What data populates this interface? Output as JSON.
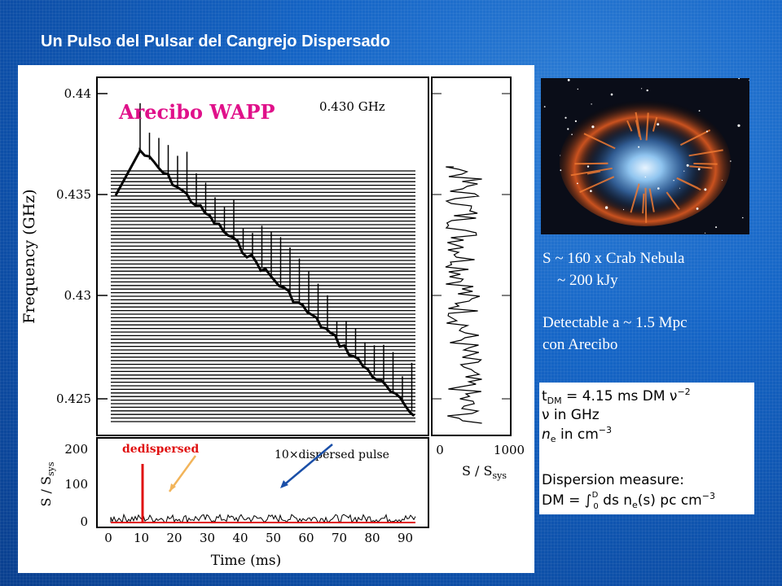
{
  "slide": {
    "title": "Un Pulso del Pulsar del Cangrejo Dispersado"
  },
  "plot": {
    "observatory_label": "Arecibo WAPP",
    "frequency_label": "0.430 GHz",
    "y_axis_label": "Frequency (GHz)",
    "y_ticks": [
      "0.44",
      "0.435",
      "0.43",
      "0.425"
    ],
    "right_x_label": "S / S",
    "right_x_sub": "sys",
    "right_x_ticks": [
      "0",
      "1000"
    ],
    "bottom_y_label": "S / S",
    "bottom_y_sub": "sys",
    "bottom_y_ticks": [
      "200",
      "100",
      "0"
    ],
    "bottom_x_ticks": [
      "0",
      "10",
      "20",
      "30",
      "40",
      "50",
      "60",
      "70",
      "80",
      "90"
    ],
    "x_axis_label": "Time (ms)",
    "dedispersed_label": "dedispersed",
    "dispersed_label": "10×dispersed pulse"
  },
  "info": {
    "line1": "S ~ 160 x Crab Nebula",
    "line2": "~ 200 kJy",
    "line3": "Detectable a ~ 1.5 Mpc",
    "line4": "con Arecibo"
  },
  "formula": {
    "tdm_pre": "t",
    "tdm_sub": "DM",
    "tdm_rest": " = 4.15 ms DM ν",
    "tdm_sup": "−2",
    "nu_line": "ν in GHz",
    "ne_pre": "n",
    "ne_sub": "e",
    "ne_rest": " in cm",
    "ne_sup": "−3",
    "dm_title": "Dispersion measure:",
    "dm_pre": "DM = ∫",
    "dm_upper": "D",
    "dm_lower": "0",
    "dm_mid": " ds n",
    "dm_sub": "e",
    "dm_rest": "(s)  pc cm",
    "dm_sup": "−3"
  },
  "colors": {
    "background": "#1565c6",
    "title_text": "#ffffff",
    "observatory_label": "#e0118a",
    "dedispersed_red": "#e01010",
    "arrow_orange": "#f2b45a",
    "arrow_blue": "#1a4fa8"
  }
}
